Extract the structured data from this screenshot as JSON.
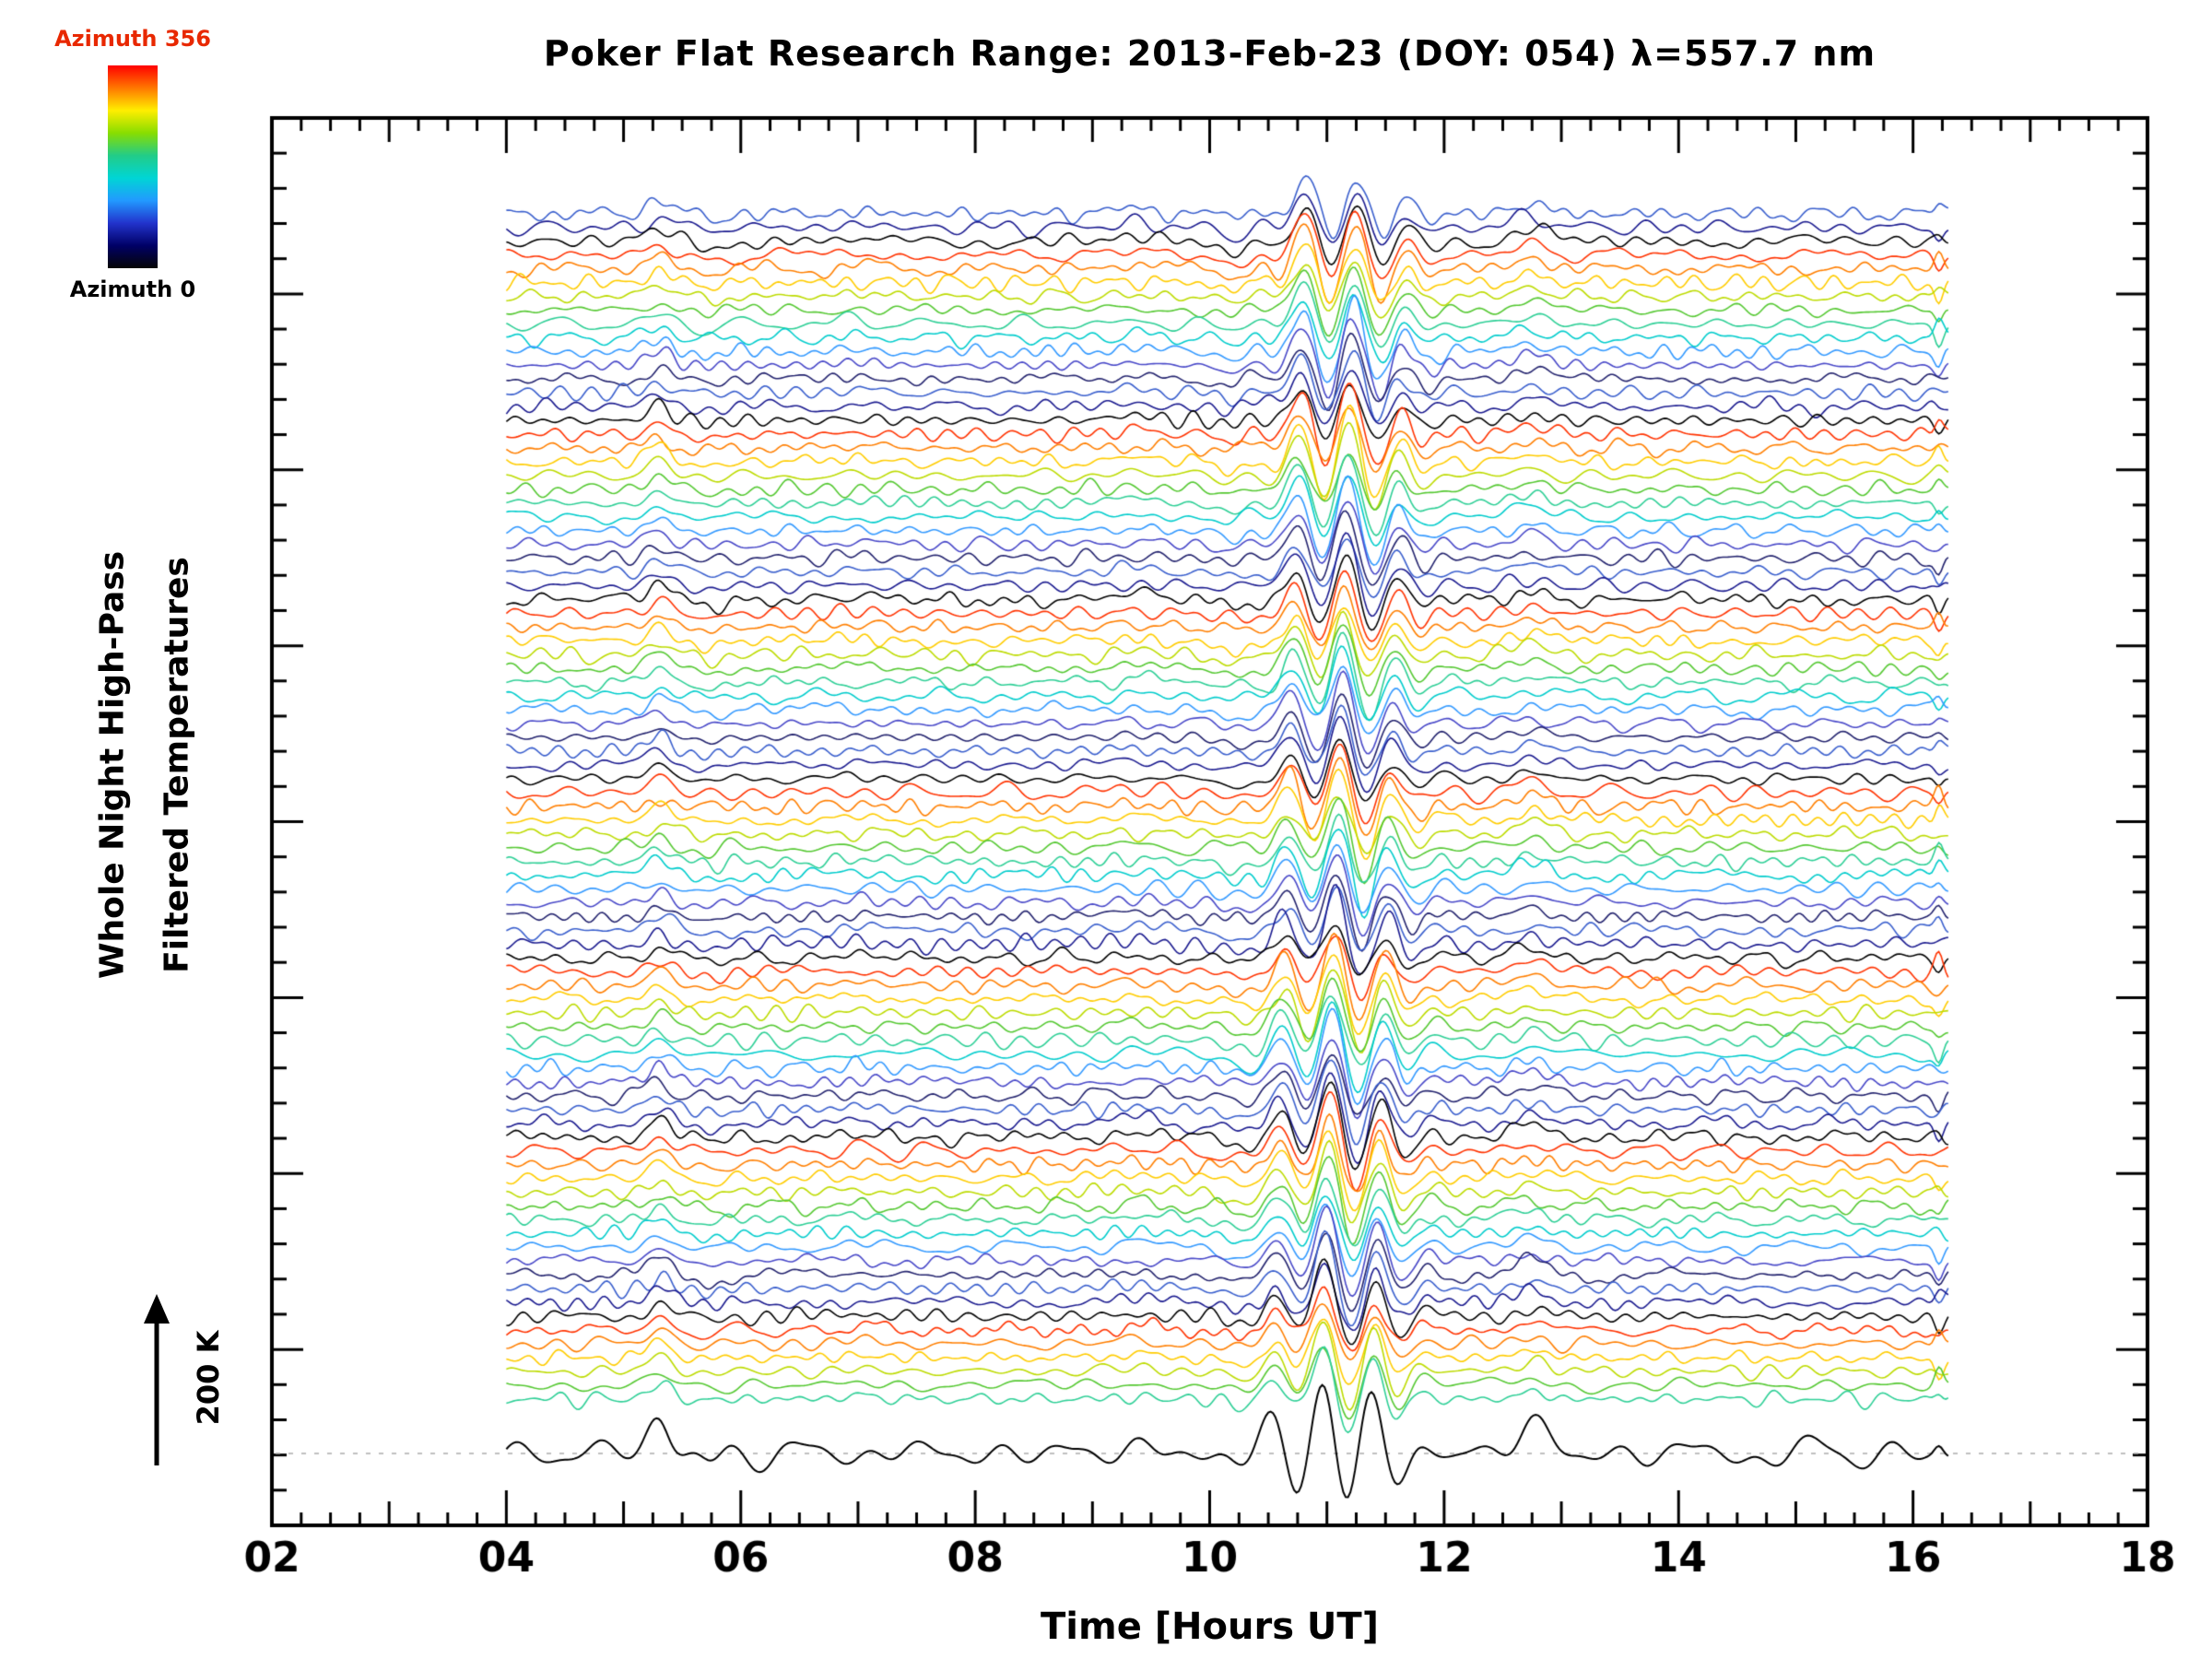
{
  "header": {
    "title": "Poker Flat Research Range: 2013-Feb-23 (DOY: 054) λ=557.7 nm"
  },
  "colorbar": {
    "top_label": "Azimuth 356",
    "bottom_label": "Azimuth 0",
    "top_label_color": "#e82800",
    "bottom_label_color": "#000000",
    "stops": [
      "#ff0000",
      "#ff7700",
      "#ffee00",
      "#88dd00",
      "#22cc88",
      "#00d5d5",
      "#2299ff",
      "#2233cc",
      "#000066",
      "#050505"
    ]
  },
  "axes": {
    "x_label": "Time [Hours UT]",
    "y_label_line1": "Whole Night High-Pass",
    "y_label_line2": "Filtered Temperatures",
    "scale_label": "200 K"
  },
  "chart_data": {
    "type": "line",
    "title": "Poker Flat Research Range: 2013-Feb-23 (DOY: 054) λ=557.7 nm",
    "xlabel": "Time [Hours UT]",
    "ylabel": "Whole Night High-Pass Filtered Temperatures",
    "x_range": [
      2,
      18
    ],
    "x_tick_values": [
      2,
      4,
      6,
      8,
      10,
      12,
      14,
      16,
      18
    ],
    "x_tick_labels": [
      "02",
      "04",
      "06",
      "08",
      "10",
      "12",
      "14",
      "16",
      "18"
    ],
    "x_minor_tick_step": 0.25,
    "y_major_tick_count": 8,
    "y_minor_per_major": 5,
    "grid": false,
    "legend": "none",
    "traces": {
      "count": 88,
      "x_start": 4.0,
      "x_end": 16.3,
      "sample_step": 0.02,
      "stacking": "vertically offset, one trace per azimuth look direction, color cycles with azimuth",
      "color_cycle": [
        "#3a5fcd",
        "#1b1b8f",
        "#000000",
        "#ff3300",
        "#ff7f00",
        "#ffcc00",
        "#bddb00",
        "#55c832",
        "#2ecf96",
        "#00cccc",
        "#3399ff",
        "#4848c8",
        "#23236e"
      ],
      "bottom_reference": {
        "color": "#000000",
        "amplitude_scale": 2.2,
        "baseline_dashed": true,
        "dash_color": "#aaaaaa"
      }
    },
    "signal_model": {
      "units": "vertical trace spacing (scale arrow = 200 K)",
      "noise": {
        "components": 6,
        "freq_range_cycles_per_hour": [
          0.4,
          5.0
        ],
        "component_amplitude": [
          0.09,
          0.19
        ]
      },
      "events": [
        {
          "type": "gaussian",
          "center": 5.3,
          "sigma": 0.13,
          "amplitude": [
            0.5,
            1.3
          ]
        },
        {
          "type": "gaussian",
          "center": 5.75,
          "sigma": 0.12,
          "amplitude": [
            -0.5,
            0.0
          ]
        },
        {
          "type": "gaussian",
          "center": 7.0,
          "sigma": 0.25,
          "amplitude": [
            0.0,
            0.3
          ]
        },
        {
          "type": "gaussian",
          "center": 9.35,
          "sigma": 0.25,
          "amplitude": [
            0.05,
            0.45
          ]
        },
        {
          "type": "gaussian",
          "center": 10.25,
          "sigma": 0.18,
          "amplitude": [
            -0.9,
            -0.2
          ]
        },
        {
          "type": "gaussian",
          "center": 10.85,
          "sigma": 0.45,
          "amplitude": [
            0.5,
            1.2
          ]
        },
        {
          "type": "wavepacket",
          "center": 11.15,
          "sigma": 0.55,
          "period": 0.45,
          "amplitude": [
            2.0,
            3.4
          ],
          "phase_step_per_trace": 0.05
        },
        {
          "type": "gaussian",
          "center": 12.75,
          "sigma": 0.18,
          "amplitude": [
            0.3,
            1.0
          ]
        },
        {
          "type": "gaussian",
          "center": 16.22,
          "sigma": 0.05,
          "amplitude": [
            -1.5,
            1.5
          ]
        }
      ]
    },
    "annotations": {
      "scale_arrow_label": "200 K",
      "colorbar_top": "Azimuth 356",
      "colorbar_bottom": "Azimuth 0"
    }
  }
}
